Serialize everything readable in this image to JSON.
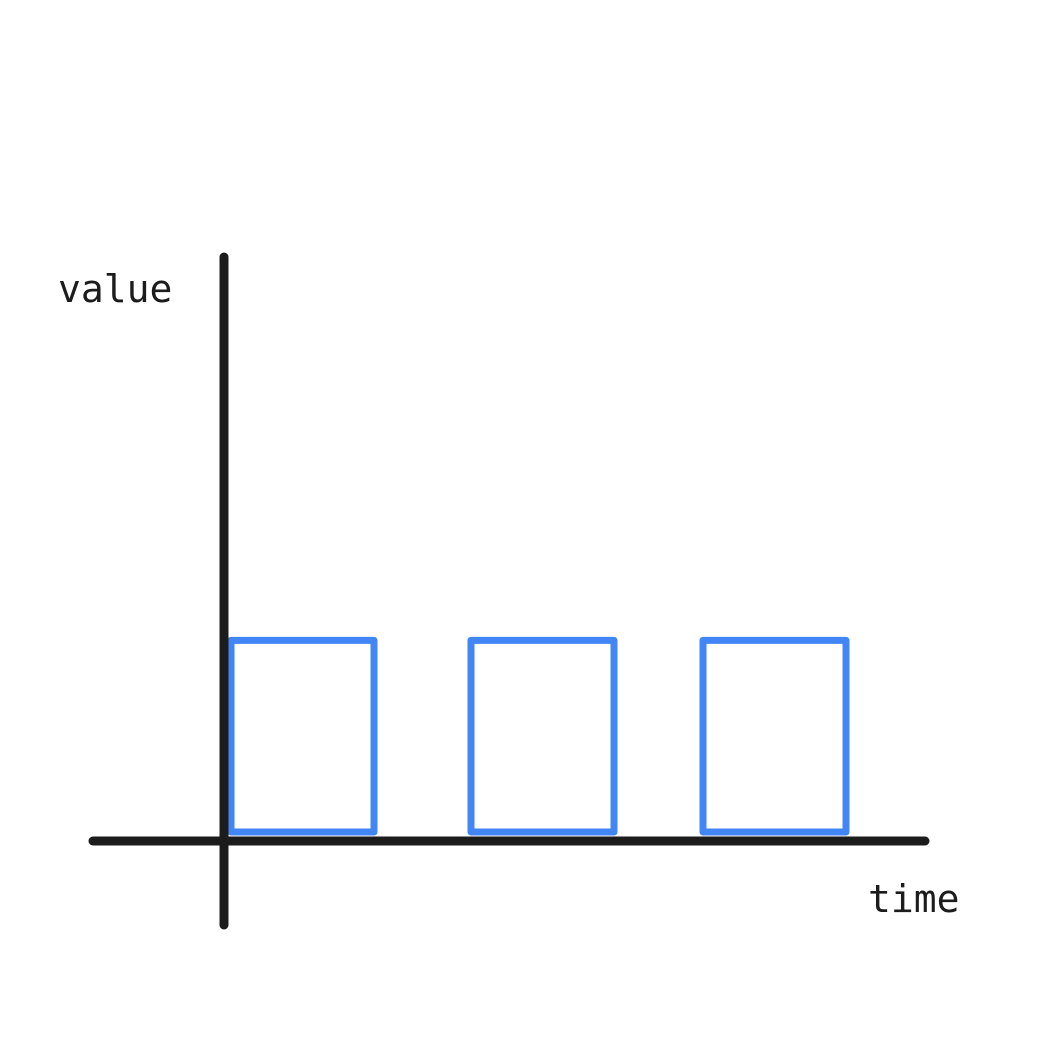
{
  "chart_data": {
    "type": "bar",
    "xlabel": "time",
    "ylabel": "value",
    "categories": [
      "",
      "",
      ""
    ],
    "values": [
      1,
      1,
      1
    ],
    "ylim": [
      0,
      3
    ],
    "grid": false,
    "colors": {
      "bars": "#4285f4",
      "axes": "#1c1c1c"
    }
  }
}
